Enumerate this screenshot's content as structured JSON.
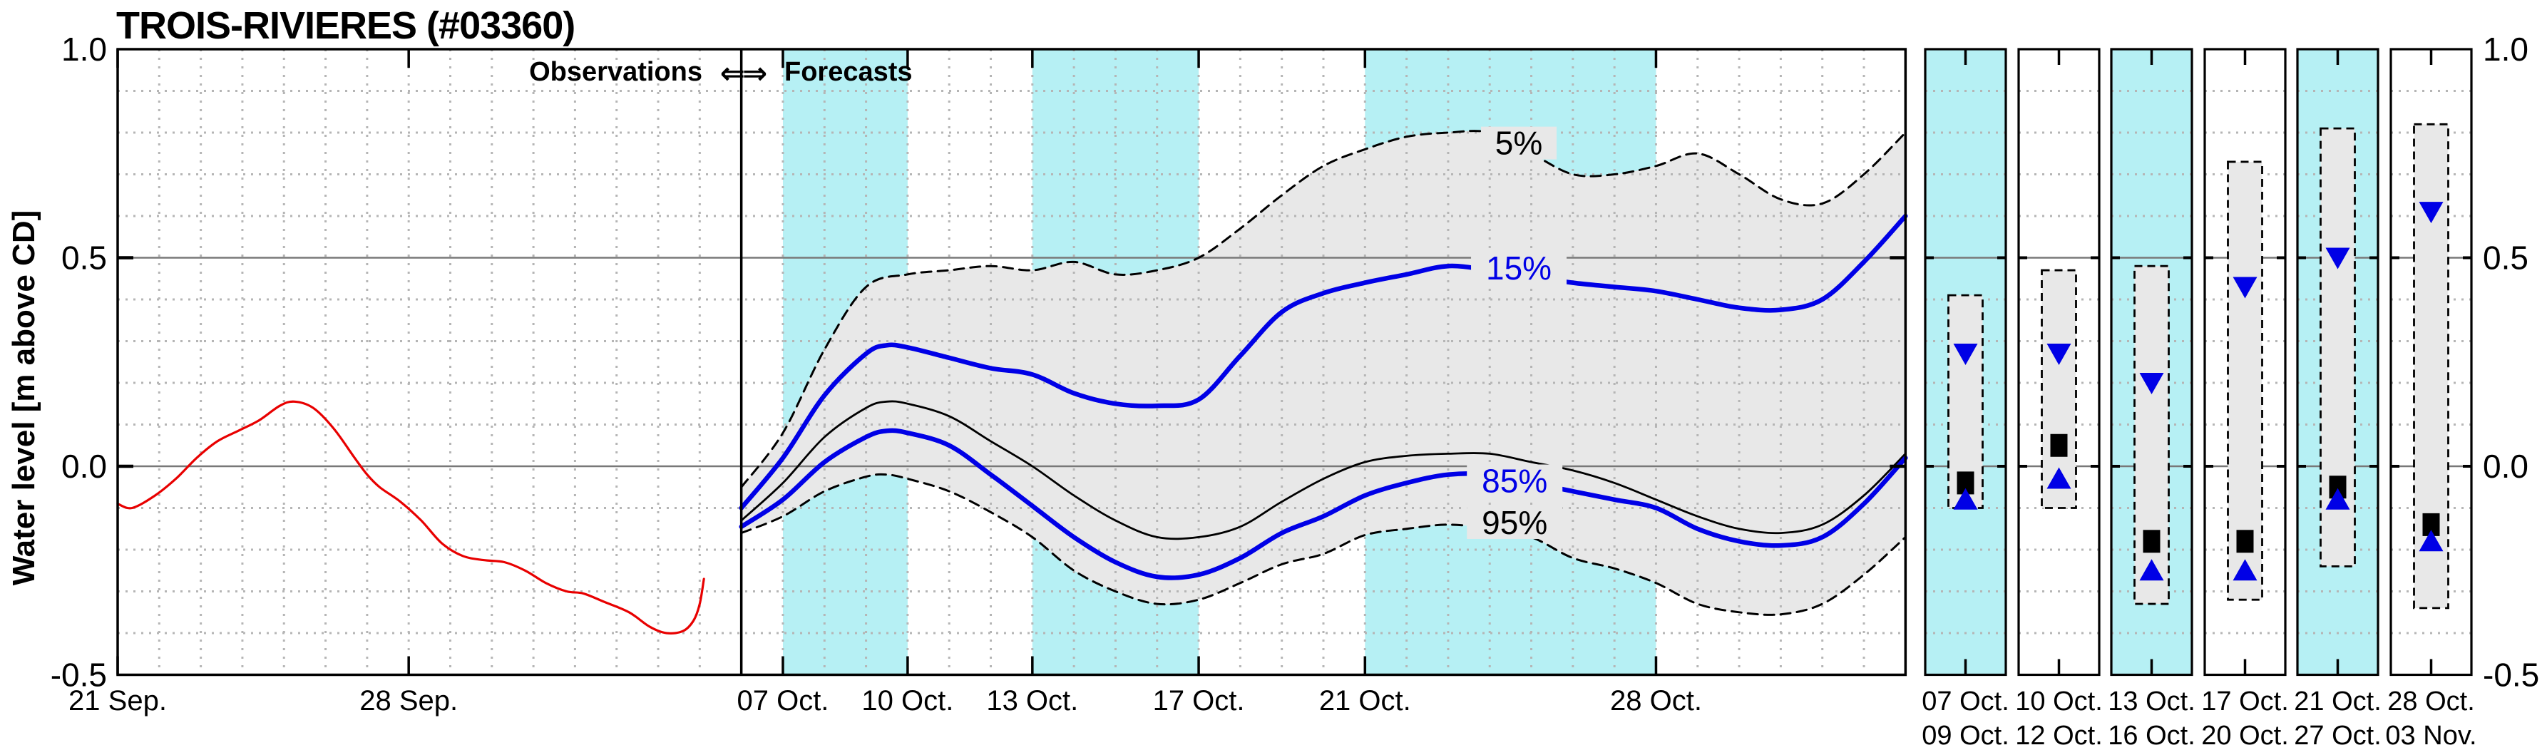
{
  "title": "TROIS-RIVIERES (#03360)",
  "y_axis": {
    "title": "Water level [m above CD]",
    "ticks": [
      {
        "value": 1.0,
        "label": "1.0"
      },
      {
        "value": 0.5,
        "label": "0.5"
      },
      {
        "value": 0.0,
        "label": "0.0"
      },
      {
        "value": -0.5,
        "label": "-0.5"
      }
    ]
  },
  "right_axis": {
    "ticks": [
      {
        "value": 1.0,
        "label": "1.0"
      },
      {
        "value": 0.5,
        "label": "0.5"
      },
      {
        "value": 0.0,
        "label": "0.0"
      },
      {
        "value": -0.5,
        "label": "-0.5"
      }
    ]
  },
  "header": {
    "observations_label": "Observations",
    "arrows": "⇐⇒",
    "forecasts_label": "Forecasts"
  },
  "colors": {
    "cyan_band": "#b6f0f4",
    "envelope": "#e8e8e8",
    "grid": "#b5b5b5",
    "midline": "#787878",
    "blue": "#0000e6",
    "red": "#e80000",
    "black": "#000000"
  },
  "chart_data": {
    "type": "line",
    "title": "TROIS-RIVIERES (#03360)",
    "ylabel": "Water level [m above CD]",
    "ylim": [
      -0.5,
      1.0
    ],
    "xlim_days": [
      0,
      43
    ],
    "day_zero_date": "21 Sep.",
    "forecast_divider_day": 15,
    "grid": {
      "y_minor_step": 0.1,
      "y_major_values": [
        0.0,
        0.5
      ],
      "x_minor_step_days": 1,
      "grid_on": true
    },
    "x_ticks": [
      {
        "day": 0,
        "label": "21 Sep."
      },
      {
        "day": 7,
        "label": "28 Sep."
      },
      {
        "day": 16,
        "label": "07 Oct."
      },
      {
        "day": 19,
        "label": "10 Oct."
      },
      {
        "day": 22,
        "label": "13 Oct."
      },
      {
        "day": 26,
        "label": "17 Oct."
      },
      {
        "day": 30,
        "label": "21 Oct."
      },
      {
        "day": 37,
        "label": "28 Oct."
      }
    ],
    "cyan_bands_days": [
      [
        16,
        19
      ],
      [
        22,
        26
      ],
      [
        30,
        37
      ]
    ],
    "envelope": {
      "upper": "5%",
      "lower": "95%"
    },
    "series": [
      {
        "name": "observed",
        "color": "red",
        "style": "solid",
        "width": 3.2,
        "points": [
          [
            0,
            -0.09
          ],
          [
            0.35,
            -0.1
          ],
          [
            0.9,
            -0.07
          ],
          [
            1.4,
            -0.03
          ],
          [
            1.9,
            0.02
          ],
          [
            2.4,
            0.06
          ],
          [
            2.9,
            0.085
          ],
          [
            3.4,
            0.11
          ],
          [
            3.9,
            0.145
          ],
          [
            4.25,
            0.155
          ],
          [
            4.7,
            0.14
          ],
          [
            5.2,
            0.09
          ],
          [
            5.7,
            0.02
          ],
          [
            6.0,
            -0.02
          ],
          [
            6.3,
            -0.05
          ],
          [
            6.8,
            -0.085
          ],
          [
            7.3,
            -0.13
          ],
          [
            7.8,
            -0.185
          ],
          [
            8.3,
            -0.215
          ],
          [
            8.8,
            -0.225
          ],
          [
            9.3,
            -0.23
          ],
          [
            9.8,
            -0.25
          ],
          [
            10.3,
            -0.28
          ],
          [
            10.8,
            -0.3
          ],
          [
            11.2,
            -0.305
          ],
          [
            11.7,
            -0.325
          ],
          [
            12.3,
            -0.35
          ],
          [
            12.8,
            -0.385
          ],
          [
            13.2,
            -0.4
          ],
          [
            13.6,
            -0.395
          ],
          [
            13.85,
            -0.37
          ],
          [
            14.0,
            -0.33
          ],
          [
            14.1,
            -0.27
          ]
        ]
      },
      {
        "name": "5%",
        "color": "black",
        "style": "dashed",
        "width": 3,
        "points": [
          [
            15,
            -0.05
          ],
          [
            16,
            0.08
          ],
          [
            17,
            0.28
          ],
          [
            18,
            0.43
          ],
          [
            19,
            0.46
          ],
          [
            20,
            0.47
          ],
          [
            21,
            0.48
          ],
          [
            22,
            0.47
          ],
          [
            23,
            0.49
          ],
          [
            24,
            0.46
          ],
          [
            25,
            0.47
          ],
          [
            26,
            0.5
          ],
          [
            27,
            0.57
          ],
          [
            28,
            0.65
          ],
          [
            29,
            0.72
          ],
          [
            30,
            0.76
          ],
          [
            31,
            0.79
          ],
          [
            32,
            0.8
          ],
          [
            33,
            0.8
          ],
          [
            34,
            0.75
          ],
          [
            35,
            0.7
          ],
          [
            36,
            0.7
          ],
          [
            37,
            0.72
          ],
          [
            38,
            0.75
          ],
          [
            39,
            0.7
          ],
          [
            40,
            0.64
          ],
          [
            41,
            0.63
          ],
          [
            42,
            0.7
          ],
          [
            43,
            0.8
          ]
        ]
      },
      {
        "name": "15%",
        "color": "blue",
        "style": "solid",
        "width": 6.5,
        "points": [
          [
            15,
            -0.1
          ],
          [
            16,
            0.02
          ],
          [
            17,
            0.17
          ],
          [
            18,
            0.27
          ],
          [
            18.5,
            0.29
          ],
          [
            19,
            0.285
          ],
          [
            20,
            0.26
          ],
          [
            21,
            0.235
          ],
          [
            22,
            0.22
          ],
          [
            23,
            0.175
          ],
          [
            24,
            0.15
          ],
          [
            25,
            0.145
          ],
          [
            26,
            0.16
          ],
          [
            27,
            0.265
          ],
          [
            28,
            0.37
          ],
          [
            29,
            0.415
          ],
          [
            30,
            0.44
          ],
          [
            31,
            0.46
          ],
          [
            32,
            0.48
          ],
          [
            33,
            0.47
          ],
          [
            34,
            0.455
          ],
          [
            35,
            0.44
          ],
          [
            36,
            0.43
          ],
          [
            37,
            0.42
          ],
          [
            38,
            0.4
          ],
          [
            39,
            0.38
          ],
          [
            40,
            0.375
          ],
          [
            41,
            0.4
          ],
          [
            42,
            0.49
          ],
          [
            43,
            0.6
          ]
        ]
      },
      {
        "name": "50%",
        "color": "black",
        "style": "solid",
        "width": 2.8,
        "points": [
          [
            15,
            -0.13
          ],
          [
            16,
            -0.04
          ],
          [
            17,
            0.07
          ],
          [
            18,
            0.14
          ],
          [
            18.5,
            0.155
          ],
          [
            19,
            0.15
          ],
          [
            20,
            0.12
          ],
          [
            21,
            0.06
          ],
          [
            22,
            0.0
          ],
          [
            23,
            -0.07
          ],
          [
            24,
            -0.13
          ],
          [
            25,
            -0.17
          ],
          [
            26,
            -0.17
          ],
          [
            27,
            -0.145
          ],
          [
            28,
            -0.085
          ],
          [
            29,
            -0.03
          ],
          [
            30,
            0.01
          ],
          [
            31,
            0.025
          ],
          [
            32,
            0.03
          ],
          [
            33,
            0.03
          ],
          [
            34,
            0.01
          ],
          [
            35,
            -0.01
          ],
          [
            36,
            -0.04
          ],
          [
            37,
            -0.08
          ],
          [
            38,
            -0.12
          ],
          [
            39,
            -0.15
          ],
          [
            40,
            -0.16
          ],
          [
            41,
            -0.14
          ],
          [
            42,
            -0.07
          ],
          [
            43,
            0.03
          ]
        ]
      },
      {
        "name": "85%",
        "color": "blue",
        "style": "solid",
        "width": 6.5,
        "points": [
          [
            15,
            -0.145
          ],
          [
            16,
            -0.08
          ],
          [
            17,
            0.01
          ],
          [
            18,
            0.07
          ],
          [
            18.5,
            0.085
          ],
          [
            19,
            0.08
          ],
          [
            20,
            0.05
          ],
          [
            21,
            -0.02
          ],
          [
            22,
            -0.095
          ],
          [
            23,
            -0.17
          ],
          [
            24,
            -0.23
          ],
          [
            25,
            -0.265
          ],
          [
            26,
            -0.26
          ],
          [
            27,
            -0.22
          ],
          [
            28,
            -0.16
          ],
          [
            29,
            -0.12
          ],
          [
            30,
            -0.07
          ],
          [
            31,
            -0.04
          ],
          [
            32,
            -0.02
          ],
          [
            33,
            -0.02
          ],
          [
            34,
            -0.04
          ],
          [
            35,
            -0.06
          ],
          [
            36,
            -0.08
          ],
          [
            37,
            -0.1
          ],
          [
            38,
            -0.15
          ],
          [
            39,
            -0.18
          ],
          [
            40,
            -0.19
          ],
          [
            41,
            -0.17
          ],
          [
            42,
            -0.09
          ],
          [
            43,
            0.02
          ]
        ]
      },
      {
        "name": "95%",
        "color": "black",
        "style": "dashed",
        "width": 3,
        "points": [
          [
            15,
            -0.16
          ],
          [
            16,
            -0.12
          ],
          [
            17,
            -0.06
          ],
          [
            18,
            -0.025
          ],
          [
            18.5,
            -0.02
          ],
          [
            19,
            -0.03
          ],
          [
            20,
            -0.06
          ],
          [
            21,
            -0.11
          ],
          [
            22,
            -0.17
          ],
          [
            23,
            -0.25
          ],
          [
            24,
            -0.3
          ],
          [
            25,
            -0.33
          ],
          [
            26,
            -0.32
          ],
          [
            27,
            -0.28
          ],
          [
            28,
            -0.235
          ],
          [
            29,
            -0.21
          ],
          [
            30,
            -0.165
          ],
          [
            31,
            -0.15
          ],
          [
            32,
            -0.14
          ],
          [
            33,
            -0.15
          ],
          [
            34,
            -0.17
          ],
          [
            35,
            -0.22
          ],
          [
            36,
            -0.245
          ],
          [
            37,
            -0.28
          ],
          [
            38,
            -0.33
          ],
          [
            39,
            -0.35
          ],
          [
            40,
            -0.355
          ],
          [
            41,
            -0.33
          ],
          [
            42,
            -0.26
          ],
          [
            43,
            -0.17
          ]
        ]
      }
    ],
    "curve_labels": [
      {
        "text": "5%",
        "color": "black",
        "day": 33.7,
        "value": 0.775,
        "bg": "#e8e8e8"
      },
      {
        "text": "15%",
        "color": "blue",
        "day": 33.7,
        "value": 0.475,
        "bg": "#e8e8e8"
      },
      {
        "text": "85%",
        "color": "blue",
        "day": 33.6,
        "value": -0.035,
        "bg": "#e8e8e8"
      },
      {
        "text": "95%",
        "color": "black",
        "day": 33.6,
        "value": -0.135,
        "bg": "#e8e8e8"
      }
    ]
  },
  "side_panels": {
    "items": [
      {
        "label_top": "07 Oct.",
        "label_bottom": "09 Oct.",
        "highlighted": true,
        "range_5_95": [
          -0.1,
          0.41
        ],
        "tri_down_15": 0.27,
        "square_50": -0.04,
        "tri_up_85": -0.08
      },
      {
        "label_top": "10 Oct.",
        "label_bottom": "12 Oct.",
        "highlighted": false,
        "range_5_95": [
          -0.1,
          0.47
        ],
        "tri_down_15": 0.27,
        "square_50": 0.05,
        "tri_up_85": -0.03
      },
      {
        "label_top": "13 Oct.",
        "label_bottom": "16 Oct.",
        "highlighted": true,
        "range_5_95": [
          -0.33,
          0.48
        ],
        "tri_down_15": 0.2,
        "square_50": -0.18,
        "tri_up_85": -0.25
      },
      {
        "label_top": "17 Oct.",
        "label_bottom": "20 Oct.",
        "highlighted": false,
        "range_5_95": [
          -0.32,
          0.73
        ],
        "tri_down_15": 0.43,
        "square_50": -0.18,
        "tri_up_85": -0.25
      },
      {
        "label_top": "21 Oct.",
        "label_bottom": "27 Oct.",
        "highlighted": true,
        "range_5_95": [
          -0.24,
          0.81
        ],
        "tri_down_15": 0.5,
        "square_50": -0.05,
        "tri_up_85": -0.08
      },
      {
        "label_top": "28 Oct.",
        "label_bottom": "03 Nov.",
        "highlighted": false,
        "range_5_95": [
          -0.34,
          0.82
        ],
        "tri_down_15": 0.61,
        "square_50": -0.14,
        "tri_up_85": -0.18
      }
    ]
  }
}
